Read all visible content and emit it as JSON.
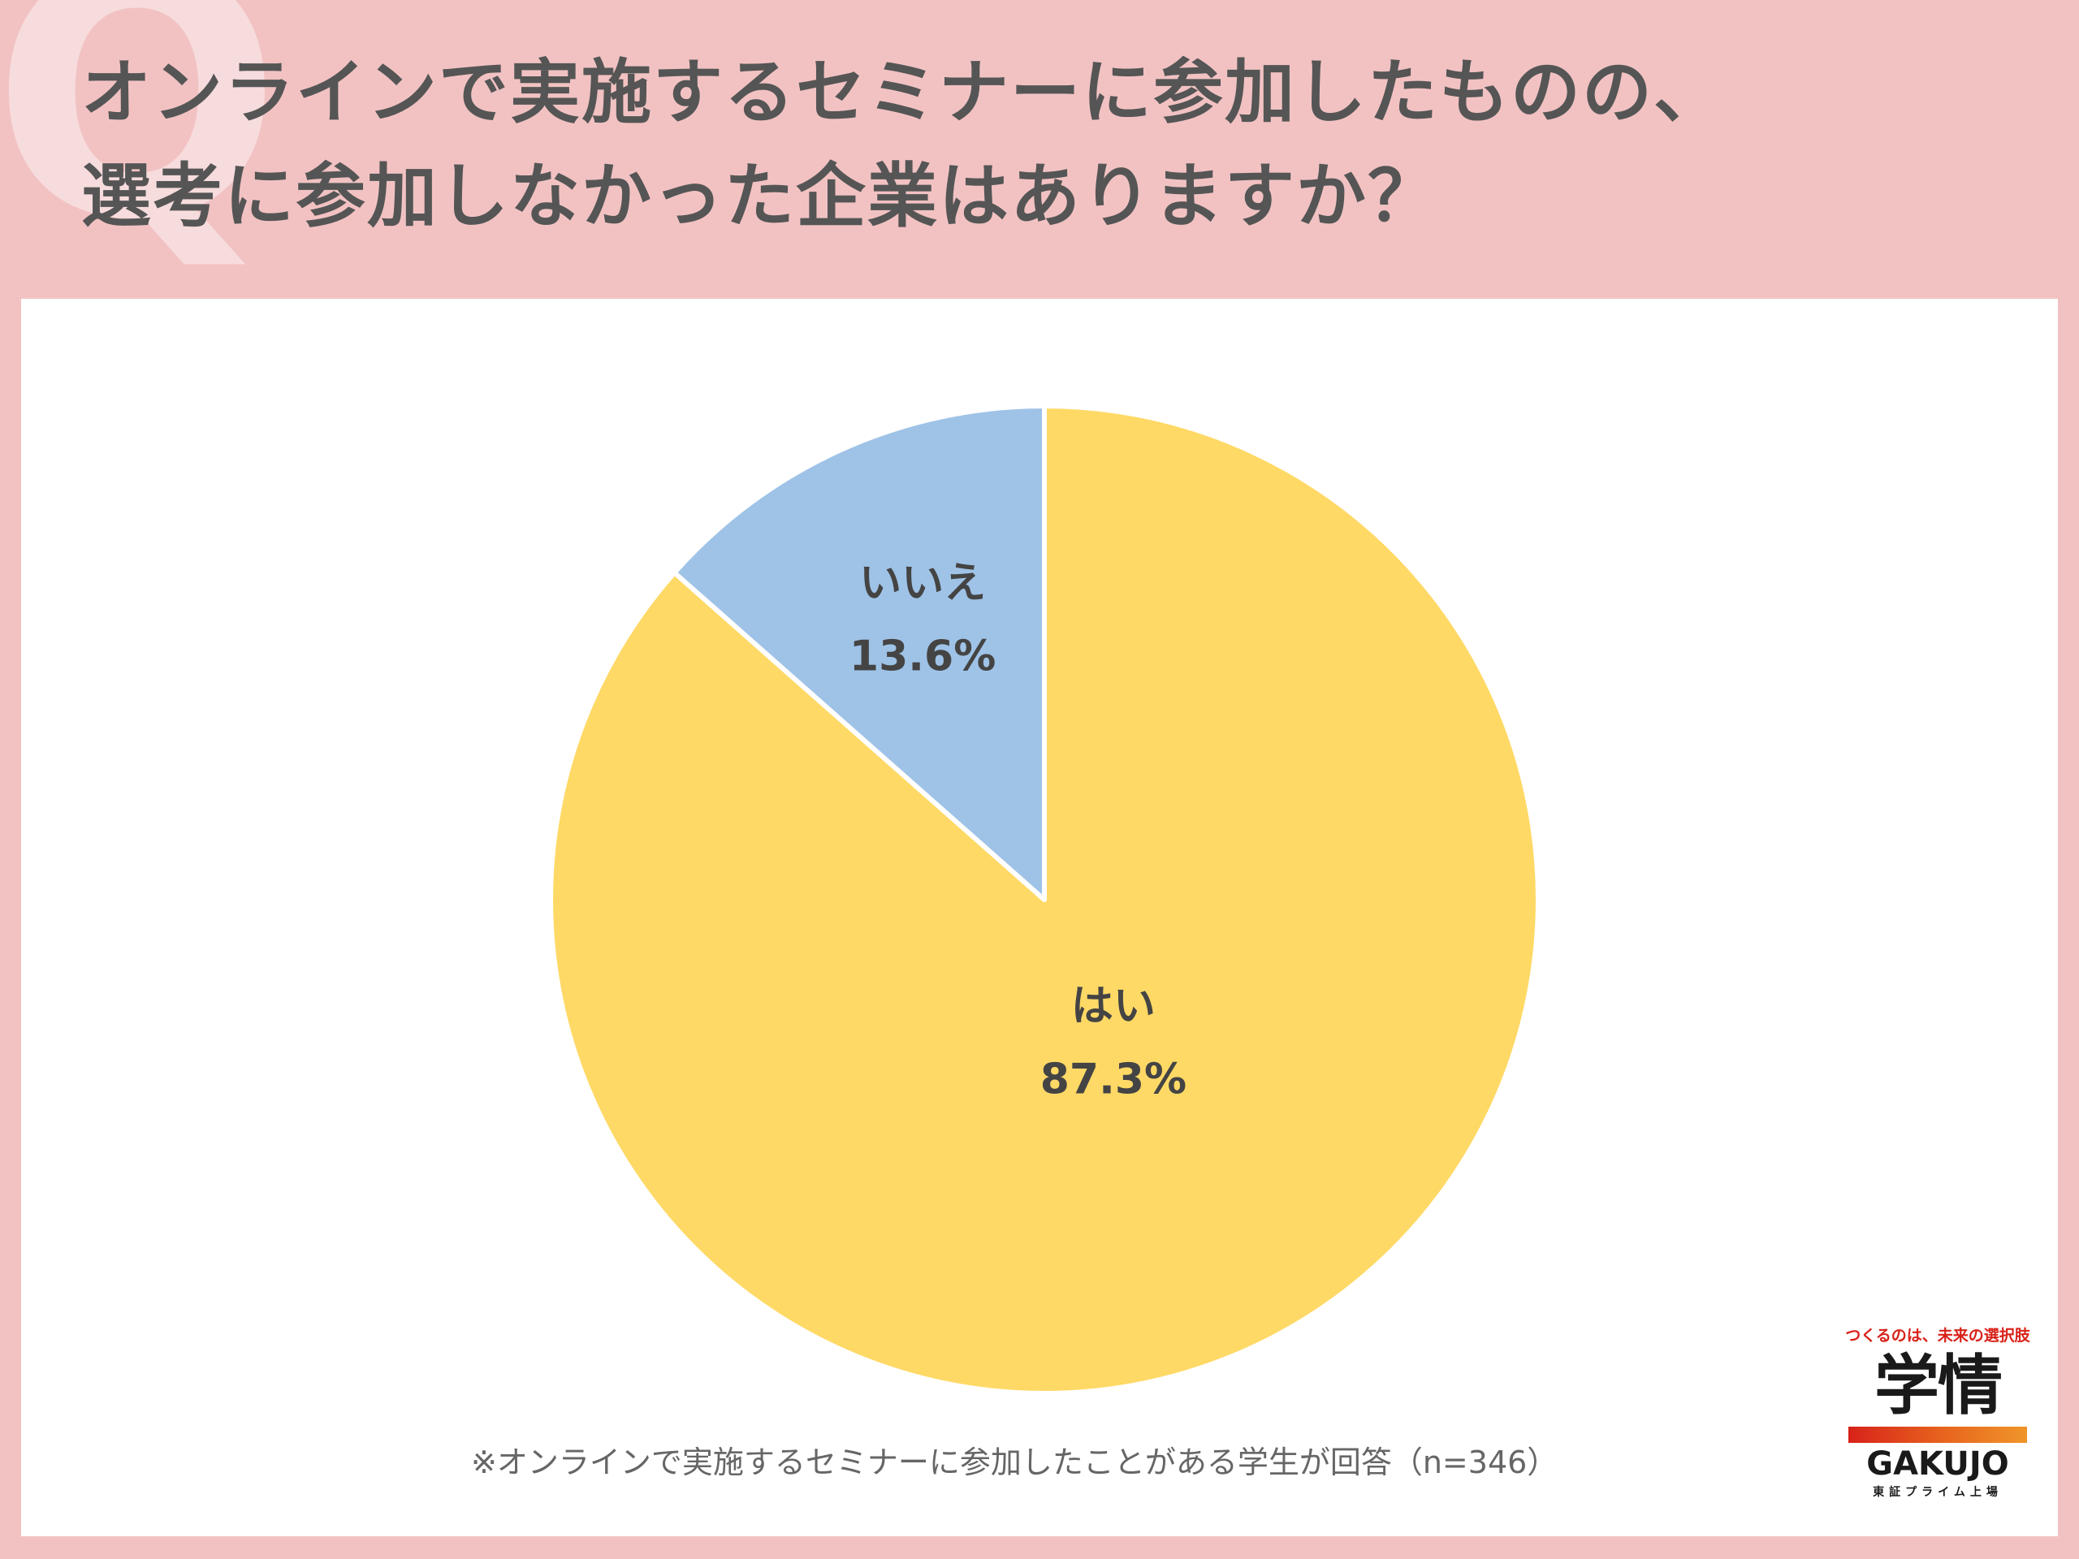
{
  "title": {
    "line1": "オンラインで実施するセミナーに参加したものの、",
    "line2": "選考に参加しなかった企業はありますか？"
  },
  "decoration": {
    "q_mark": "Q"
  },
  "chart_data": {
    "type": "pie",
    "start_angle_deg": 0,
    "direction": "clockwise",
    "slices": [
      {
        "label": "はい",
        "value": 87.3,
        "value_label": "87.3%",
        "color": "#ffd966"
      },
      {
        "label": "いいえ",
        "value": 13.6,
        "value_label": "13.6%",
        "color": "#9fc3e7"
      }
    ]
  },
  "footnote": "※オンラインで実施するセミナーに参加したことがある学生が回答（n=346）",
  "logo": {
    "tagline": "つくるのは、未来の選択肢",
    "kanji": "学情",
    "roman": "GAKUJO",
    "sub": "東証プライム上場"
  }
}
